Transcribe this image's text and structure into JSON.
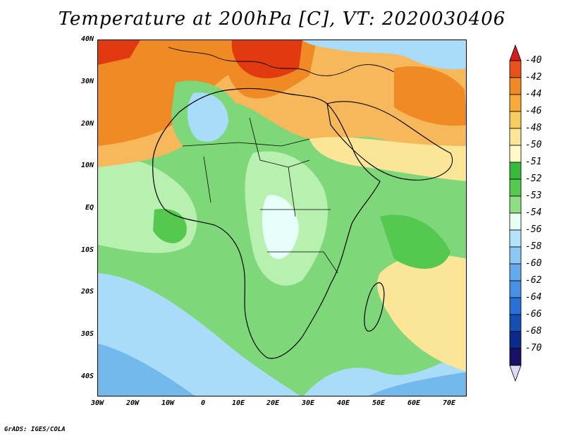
{
  "title": "Temperature at 200hPa [C], VT: 2020030406",
  "credit": "GrADS: IGES/COLA",
  "map": {
    "y_tick_labels": [
      "40N",
      "30N",
      "20N",
      "10N",
      "EQ",
      "10S",
      "20S",
      "30S",
      "40S"
    ],
    "x_tick_labels": [
      "30W",
      "20W",
      "10W",
      "0",
      "10E",
      "20E",
      "30E",
      "40E",
      "50E",
      "60E",
      "70E"
    ],
    "field_colors": {
      "warm_red": "#e23a10",
      "orange": "#f08a24",
      "light_orange": "#f6b85a",
      "yellow": "#fbe698",
      "green": "#7ed87a",
      "mid_green": "#55c850",
      "light_green": "#b8f0b0",
      "pale_cyan": "#e6fff8",
      "light_blue": "#a8dcf8",
      "blue": "#74b9ec"
    }
  },
  "colorbar": {
    "labels": [
      "-40",
      "-42",
      "-44",
      "-46",
      "-48",
      "-50",
      "-51",
      "-52",
      "-53",
      "-54",
      "-56",
      "-58",
      "-60",
      "-62",
      "-64",
      "-66",
      "-68",
      "-70"
    ],
    "colors": [
      "#d21e1e",
      "#e8501e",
      "#f08a24",
      "#f6aa3a",
      "#f6cc60",
      "#fbe698",
      "#fffac8",
      "#37b93c",
      "#55c850",
      "#8ede84",
      "#e8fff4",
      "#b4e2fa",
      "#8cc8f4",
      "#64aaee",
      "#4690e6",
      "#2870d6",
      "#1450b4",
      "#0c2a8c",
      "#1a1066",
      "#dcdcf8"
    ]
  }
}
